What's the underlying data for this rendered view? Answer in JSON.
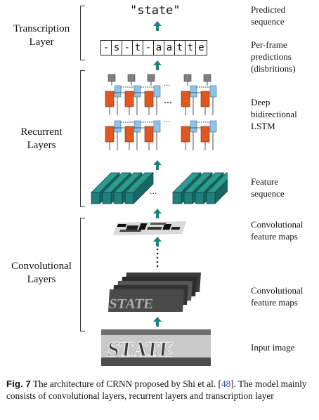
{
  "prediction": "\"state\"",
  "frames": [
    "-",
    "s",
    "-",
    "t",
    "-",
    "a",
    "a",
    "t",
    "t",
    "e"
  ],
  "left_labels": {
    "transcription": [
      "Transcription",
      "Layer"
    ],
    "recurrent": [
      "Recurrent",
      "Layers"
    ],
    "convolutional": [
      "Convolutional",
      "Layers"
    ]
  },
  "right_labels": {
    "predicted": [
      "Predicted",
      "sequence"
    ],
    "per_frame": [
      "Per-frame",
      "predictions",
      "(disbritions)"
    ],
    "lstm": [
      "Deep",
      "bidirectional",
      "LSTM"
    ],
    "feature_seq": [
      "Feature",
      "sequence"
    ],
    "conv_maps_top": [
      "Convolutional",
      "feature maps"
    ],
    "conv_maps_bottom": [
      "Convolutional",
      "feature maps"
    ],
    "input": [
      "Input image"
    ]
  },
  "ellipsis": "...",
  "input_text": "STATE",
  "feature_map_text": "STATE",
  "caption": {
    "fig": "Fig. 7",
    "text_before_ref": "  The architecture of CRNN proposed by Shi et al. [",
    "ref": "48",
    "text_after_ref": "]. The model mainly consists of convolutional layers, recurrent layers and transcription layer"
  },
  "colors": {
    "arrow": "#1f8080",
    "teal": "#1f7f7a",
    "orange": "#e2561f",
    "blue": "#8ec5e6",
    "gray": "#7f7f7f"
  }
}
